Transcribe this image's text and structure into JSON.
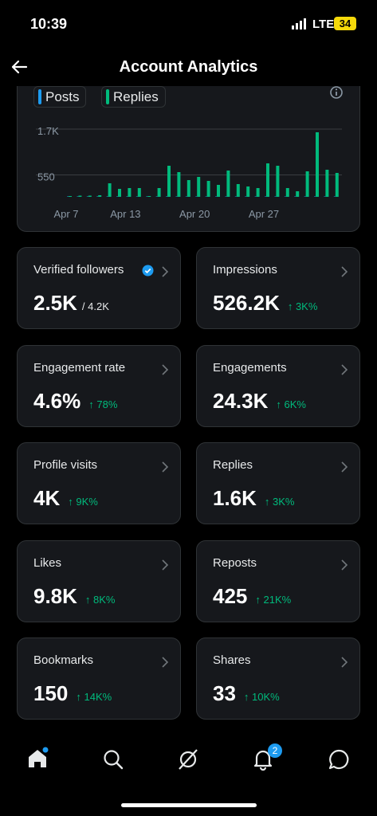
{
  "status": {
    "time": "10:39",
    "network": "LTE",
    "battery": "34"
  },
  "header": {
    "title": "Account Analytics"
  },
  "chart_data": {
    "type": "bar",
    "categories": [
      "Apr 7",
      null,
      null,
      null,
      null,
      null,
      "Apr 13",
      null,
      null,
      null,
      null,
      null,
      null,
      "Apr 20",
      null,
      null,
      null,
      null,
      null,
      null,
      "Apr 27",
      null,
      null,
      null,
      null,
      null,
      null,
      null
    ],
    "series": [
      {
        "name": "Posts",
        "color": "#1d9bf0",
        "values": [
          10,
          10,
          10,
          10,
          10,
          10,
          10,
          10,
          10,
          10,
          10,
          10,
          10,
          10,
          10,
          10,
          10,
          10,
          10,
          10,
          10,
          10,
          10,
          10,
          10,
          10,
          10,
          10
        ]
      },
      {
        "name": "Replies",
        "color": "#00ba7c",
        "values": [
          20,
          30,
          30,
          40,
          340,
          200,
          220,
          220,
          20,
          220,
          780,
          620,
          420,
          500,
          400,
          300,
          660,
          320,
          260,
          220,
          840,
          780,
          220,
          140,
          640,
          1620,
          680,
          600
        ]
      }
    ],
    "ylim": [
      0,
      1700
    ],
    "yticks": [
      550,
      {
        "value": 1700,
        "label": "1.7K"
      }
    ],
    "grid": true
  },
  "metrics": [
    {
      "name": "Verified followers",
      "value": "2.5K",
      "total": "/ 4.2K"
    },
    {
      "name": "Impressions",
      "value": "526.2K",
      "change": "↑ 3K%"
    },
    {
      "name": "Engagement rate",
      "value": "4.6%",
      "change": "↑ 78%"
    },
    {
      "name": "Engagements",
      "value": "24.3K",
      "change": "↑ 6K%"
    },
    {
      "name": "Profile visits",
      "value": "4K",
      "change": "↑ 9K%"
    },
    {
      "name": "Replies",
      "value": "1.6K",
      "change": "↑ 3K%"
    },
    {
      "name": "Likes",
      "value": "9.8K",
      "change": "↑ 8K%"
    },
    {
      "name": "Reposts",
      "value": "425",
      "change": "↑ 21K%"
    },
    {
      "name": "Bookmarks",
      "value": "150",
      "change": "↑ 14K%"
    },
    {
      "name": "Shares",
      "value": "33",
      "change": "↑ 10K%"
    }
  ],
  "nav": {
    "notifications_badge": "2"
  }
}
